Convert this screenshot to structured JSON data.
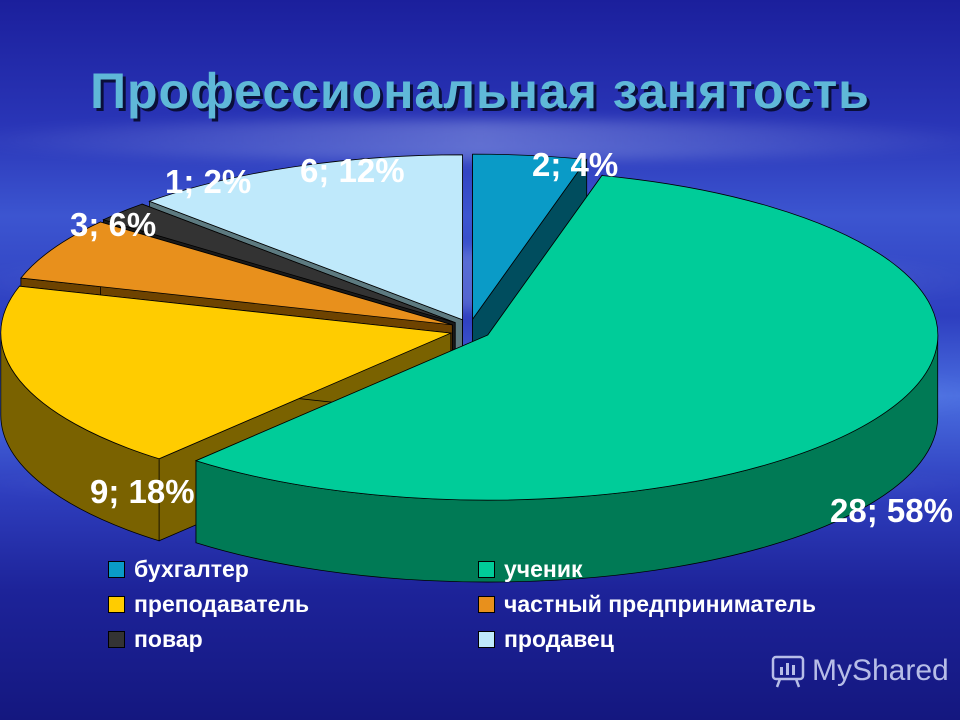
{
  "slide": {
    "title": "Профессиональная занятость"
  },
  "chart_data": {
    "type": "pie",
    "style": "3d-exploded",
    "legend_position": "bottom",
    "slices": [
      {
        "label": "бухгалтер",
        "value": 2,
        "percent": "4%",
        "data_label": "2; 4%",
        "color": "#0a9bc7",
        "side": "#004d5e"
      },
      {
        "label": "ученик",
        "value": 28,
        "percent": "58%",
        "data_label": "28; 58%",
        "color": "#00cc99",
        "side": "#007a55"
      },
      {
        "label": "преподаватель",
        "value": 9,
        "percent": "18%",
        "data_label": "9; 18%",
        "color": "#ffcc00",
        "side": "#7a6200"
      },
      {
        "label": "частный предприниматель",
        "value": 3,
        "percent": "6%",
        "data_label": "3; 6%",
        "color": "#e8901c",
        "side": "#6e4300"
      },
      {
        "label": "повар",
        "value": 1,
        "percent": "2%",
        "data_label": "1; 2%",
        "color": "#333333",
        "side": "#1a1a1a"
      },
      {
        "label": "продавец",
        "value": 6,
        "percent": "12%",
        "data_label": "6; 12%",
        "color": "#bfe9fb",
        "side": "#5d7a80"
      }
    ]
  },
  "watermark": {
    "text": "MyShared"
  }
}
